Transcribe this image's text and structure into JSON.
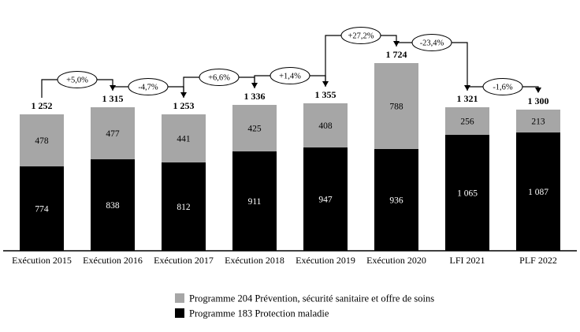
{
  "chart_data": {
    "type": "bar",
    "stacked": true,
    "grid": false,
    "legend_position": "bottom",
    "ylim": [
      0,
      1800
    ],
    "categories": [
      "Exécution 2015",
      "Exécution 2016",
      "Exécution 2017",
      "Exécution 2018",
      "Exécution 2019",
      "Exécution 2020",
      "LFI 2021",
      "PLF 2022"
    ],
    "series": [
      {
        "name": "Programme 183 Protection maladie",
        "color": "#000000",
        "label_color": "#ffffff",
        "values": [
          774,
          838,
          812,
          911,
          947,
          936,
          1065,
          1087
        ],
        "labels": [
          "774",
          "838",
          "812",
          "911",
          "947",
          "936",
          "1 065",
          "1 087"
        ]
      },
      {
        "name": "Programme 204 Prévention, sécurité sanitaire et offre de soins",
        "color": "#a6a6a6",
        "label_color": "#000000",
        "values": [
          478,
          477,
          441,
          425,
          408,
          788,
          256,
          213
        ],
        "labels": [
          "478",
          "477",
          "441",
          "425",
          "408",
          "788",
          "256",
          "213"
        ]
      }
    ],
    "totals": [
      1252,
      1315,
      1253,
      1336,
      1355,
      1724,
      1321,
      1300
    ],
    "total_labels": [
      "1 252",
      "1 315",
      "1 253",
      "1 336",
      "1 355",
      "1 724",
      "1 321",
      "1 300"
    ],
    "change_annotations": [
      {
        "from": 0,
        "to": 1,
        "label": "+5,0%"
      },
      {
        "from": 1,
        "to": 2,
        "label": "-4,7%"
      },
      {
        "from": 2,
        "to": 3,
        "label": "+6,6%"
      },
      {
        "from": 3,
        "to": 4,
        "label": "+1,4%"
      },
      {
        "from": 4,
        "to": 5,
        "label": "+27,2%"
      },
      {
        "from": 5,
        "to": 6,
        "label": "-23,4%"
      },
      {
        "from": 6,
        "to": 7,
        "label": "-1,6%"
      }
    ],
    "legend": [
      {
        "name": "Programme 204 Prévention, sécurité sanitaire et offre de soins",
        "color": "#a6a6a6"
      },
      {
        "name": "Programme 183 Protection maladie",
        "color": "#000000"
      }
    ]
  }
}
